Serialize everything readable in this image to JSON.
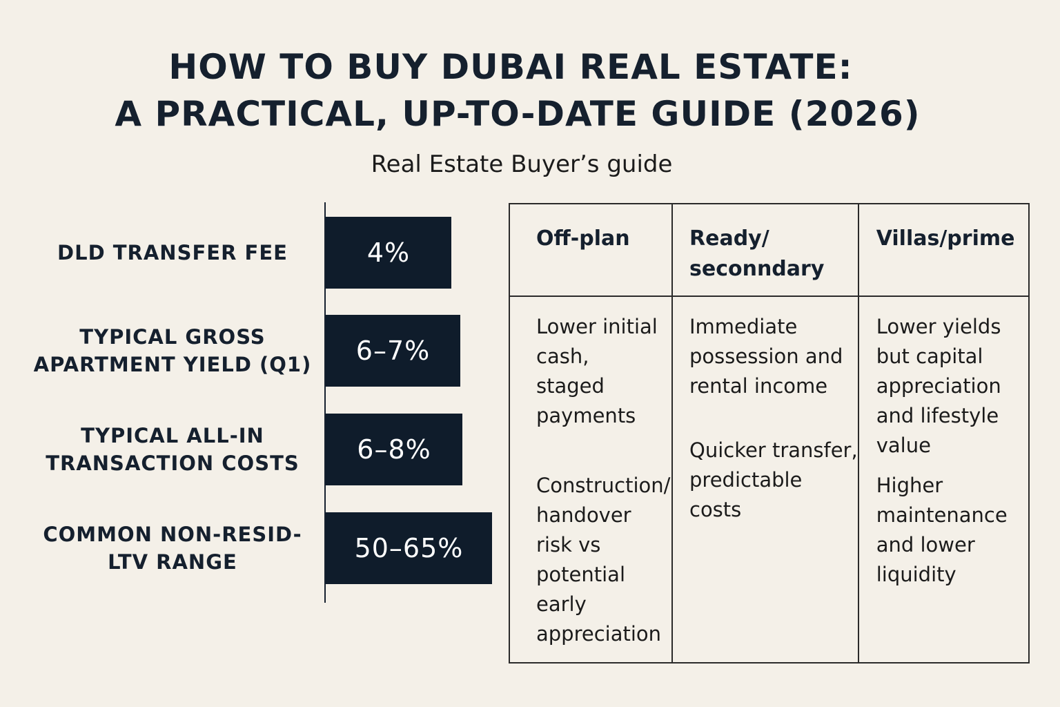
{
  "header": {
    "title": [
      "HOW TO BUY DUBAI REAL ESTATE:",
      "A PRACTICAL, UP-TO-DATE GUIDE (2026)"
    ],
    "subtitle": "Real Estate Buyer’s guide"
  },
  "metrics": [
    {
      "label": [
        "DLD TRANSFER FEE"
      ],
      "value": "4%"
    },
    {
      "label": [
        "TYPICAL GROSS",
        "APARTMENT YIELD (Q1)"
      ],
      "value": "6–7%"
    },
    {
      "label": [
        "TYPICAL ALL-IN",
        "TRANSACTION COSTS"
      ],
      "value": "6–8%"
    },
    {
      "label": [
        "COMMON NON-RESID-",
        "LTV RANGE"
      ],
      "value": "50–65%"
    }
  ],
  "table": {
    "headers": [
      [
        "Off-plan"
      ],
      [
        "Ready/",
        "seconndary"
      ],
      [
        "Villas/prime"
      ]
    ],
    "cells": [
      [
        [
          "Lower initial",
          "cash,",
          "staged",
          "payments"
        ],
        [
          "Construction/",
          "handover",
          "risk vs",
          "potential",
          "early",
          "appreciation"
        ]
      ],
      [
        [
          "Immediate",
          "possession and",
          "rental income"
        ],
        [
          "Quicker transfer,",
          "predictable",
          "costs"
        ]
      ],
      [
        [
          "Lower yields",
          "but capital",
          "appreciation",
          "and lifestyle",
          "value"
        ],
        [
          "Higher",
          "maintenance",
          "and lower",
          "liquidity"
        ]
      ]
    ]
  }
}
